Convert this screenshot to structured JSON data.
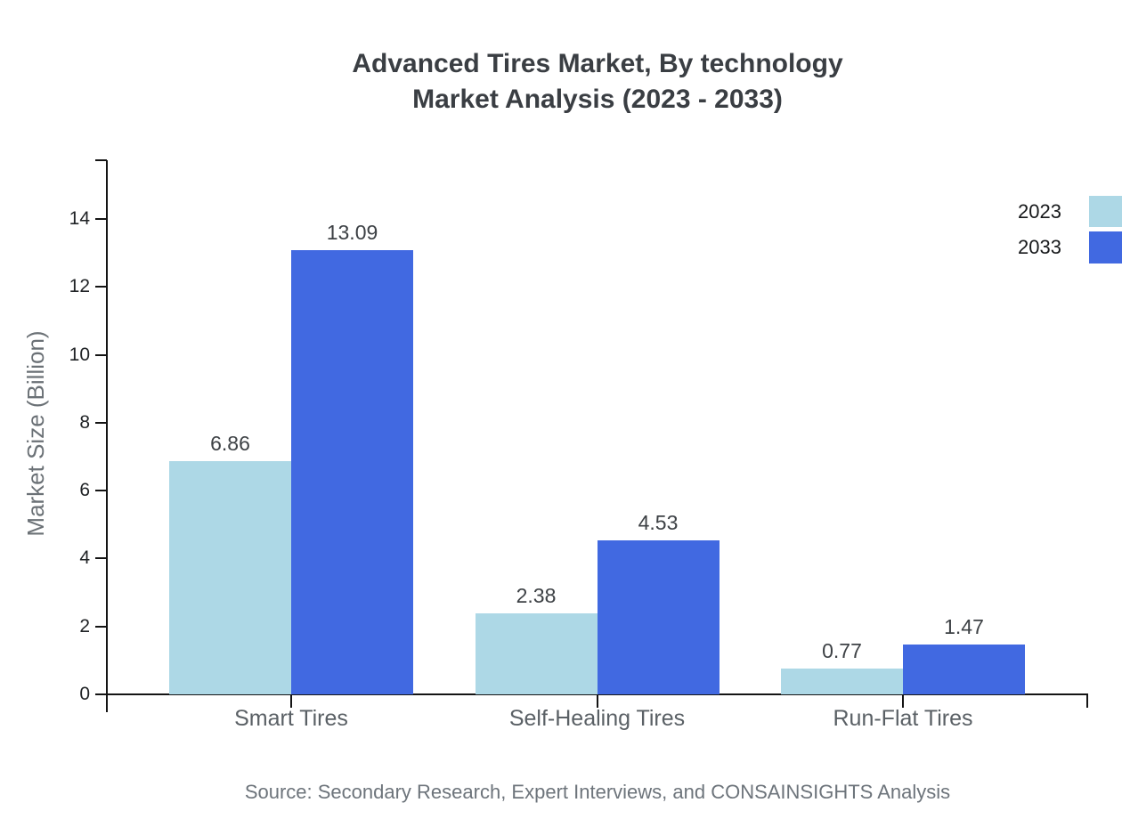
{
  "page": {
    "title_line1": "Advanced Tires Market, By technology",
    "title_line2": "Market Analysis (2023 - 2033)",
    "source": "Source: Secondary Research, Expert Interviews, and CONSAINSIGHTS Analysis"
  },
  "chart_data": {
    "type": "bar",
    "title": "Advanced Tires Market, By technology — Market Analysis (2023 - 2033)",
    "categories": [
      "Smart Tires",
      "Self-Healing Tires",
      "Run-Flat Tires"
    ],
    "series": [
      {
        "name": "2023",
        "color": "#ADD8E6",
        "values": [
          6.86,
          2.38,
          0.77
        ]
      },
      {
        "name": "2033",
        "color": "#4169E1",
        "values": [
          13.09,
          4.53,
          1.47
        ]
      }
    ],
    "value_labels": [
      "6.86",
      "13.09",
      "2.38",
      "4.53",
      "0.77",
      "1.47"
    ],
    "xlabel": "",
    "ylabel": "Market Size (Billion)",
    "yticks": [
      0,
      2,
      4,
      6,
      8,
      10,
      12,
      14
    ],
    "ylim": [
      0,
      15.7
    ],
    "grid": false,
    "legend_position": "top-right",
    "background": "#ffffff",
    "axis_color": "#141414",
    "source": "Source: Secondary Research, Expert Interviews, and CONSAINSIGHTS Analysis"
  }
}
